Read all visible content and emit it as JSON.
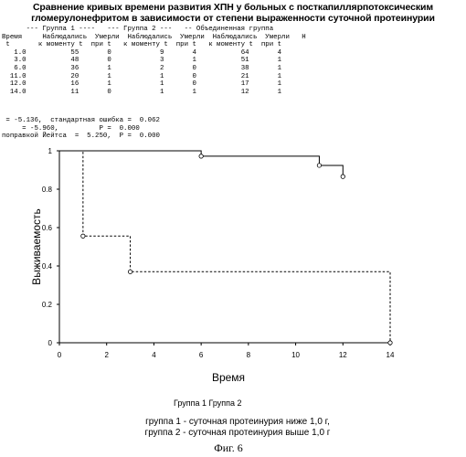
{
  "figure_title": "Сравнение кривых времени развития ХПН у больных с посткапиллярпотоксическим гломерулонефритом   в зависимости от степени выраженности суточной протеинурии",
  "life_table": {
    "group_header": "      --- Группа 1 ----   --- Группа 2 ---   -- Объединенная группа",
    "col_header_1": "Время     Наблюдались  Умерли  Наблюдались  Умерли  Наблюдались  Умерли   Н",
    "col_header_2": " t       к моменту t  при t   к моменту t  при t   к моменту t  при t",
    "rows": [
      {
        "t": "1.0",
        "g1_n": "55",
        "g1_d": "0",
        "g2_n": "9",
        "g2_d": "4",
        "all_n": "64",
        "all_d": "4"
      },
      {
        "t": "3.0",
        "g1_n": "48",
        "g1_d": "0",
        "g2_n": "3",
        "g2_d": "1",
        "all_n": "51",
        "all_d": "1"
      },
      {
        "t": "6.0",
        "g1_n": "36",
        "g1_d": "1",
        "g2_n": "2",
        "g2_d": "0",
        "all_n": "38",
        "all_d": "1"
      },
      {
        "t": "11.0",
        "g1_n": "20",
        "g1_d": "1",
        "g2_n": "1",
        "g2_d": "0",
        "all_n": "21",
        "all_d": "1"
      },
      {
        "t": "12.0",
        "g1_n": "16",
        "g1_d": "1",
        "g2_n": "1",
        "g2_d": "0",
        "all_n": "17",
        "all_d": "1"
      },
      {
        "t": "14.0",
        "g1_n": "11",
        "g1_d": "0",
        "g2_n": "1",
        "g2_d": "1",
        "all_n": "12",
        "all_d": "1"
      }
    ]
  },
  "stats": {
    "line1": " = -5.136,  стандартная ошибка =  0.062",
    "line2": "     = -5.960,          P =  0.000",
    "line3": "поправкой Йейтса  =  5.250,  P =  0.000"
  },
  "chart_data": {
    "type": "line",
    "step": true,
    "title": "",
    "xlabel": "Время",
    "ylabel": "Выживаемость",
    "xlim": [
      0,
      14
    ],
    "ylim": [
      0,
      1
    ],
    "xticks": [
      0,
      2,
      4,
      6,
      8,
      10,
      12,
      14
    ],
    "yticks": [
      0,
      0.2,
      0.4,
      0.6,
      0.8,
      1
    ],
    "grid": false,
    "legend_position": "bottom",
    "series": [
      {
        "name": "Группа 1",
        "style": "solid",
        "x": [
          0,
          6,
          11,
          12
        ],
        "y": [
          1,
          0.972,
          0.924,
          0.866
        ],
        "markers_x": [
          6,
          11,
          12
        ],
        "markers_y": [
          0.972,
          0.924,
          0.866
        ]
      },
      {
        "name": "Группа 2",
        "style": "dashed",
        "x": [
          0,
          1,
          3,
          14
        ],
        "y": [
          1,
          0.556,
          0.37,
          0
        ],
        "markers_x": [
          1,
          3,
          14
        ],
        "markers_y": [
          0.556,
          0.37,
          0
        ]
      }
    ]
  },
  "legend_text": "Группа 1  Группа 2",
  "notes": {
    "line1": "группа 1 - суточная протеинурия ниже 1,0 г,",
    "line2": "группа 2 - суточная протеинурия выше 1,0 г"
  },
  "figure_label": "Фиг. 6"
}
